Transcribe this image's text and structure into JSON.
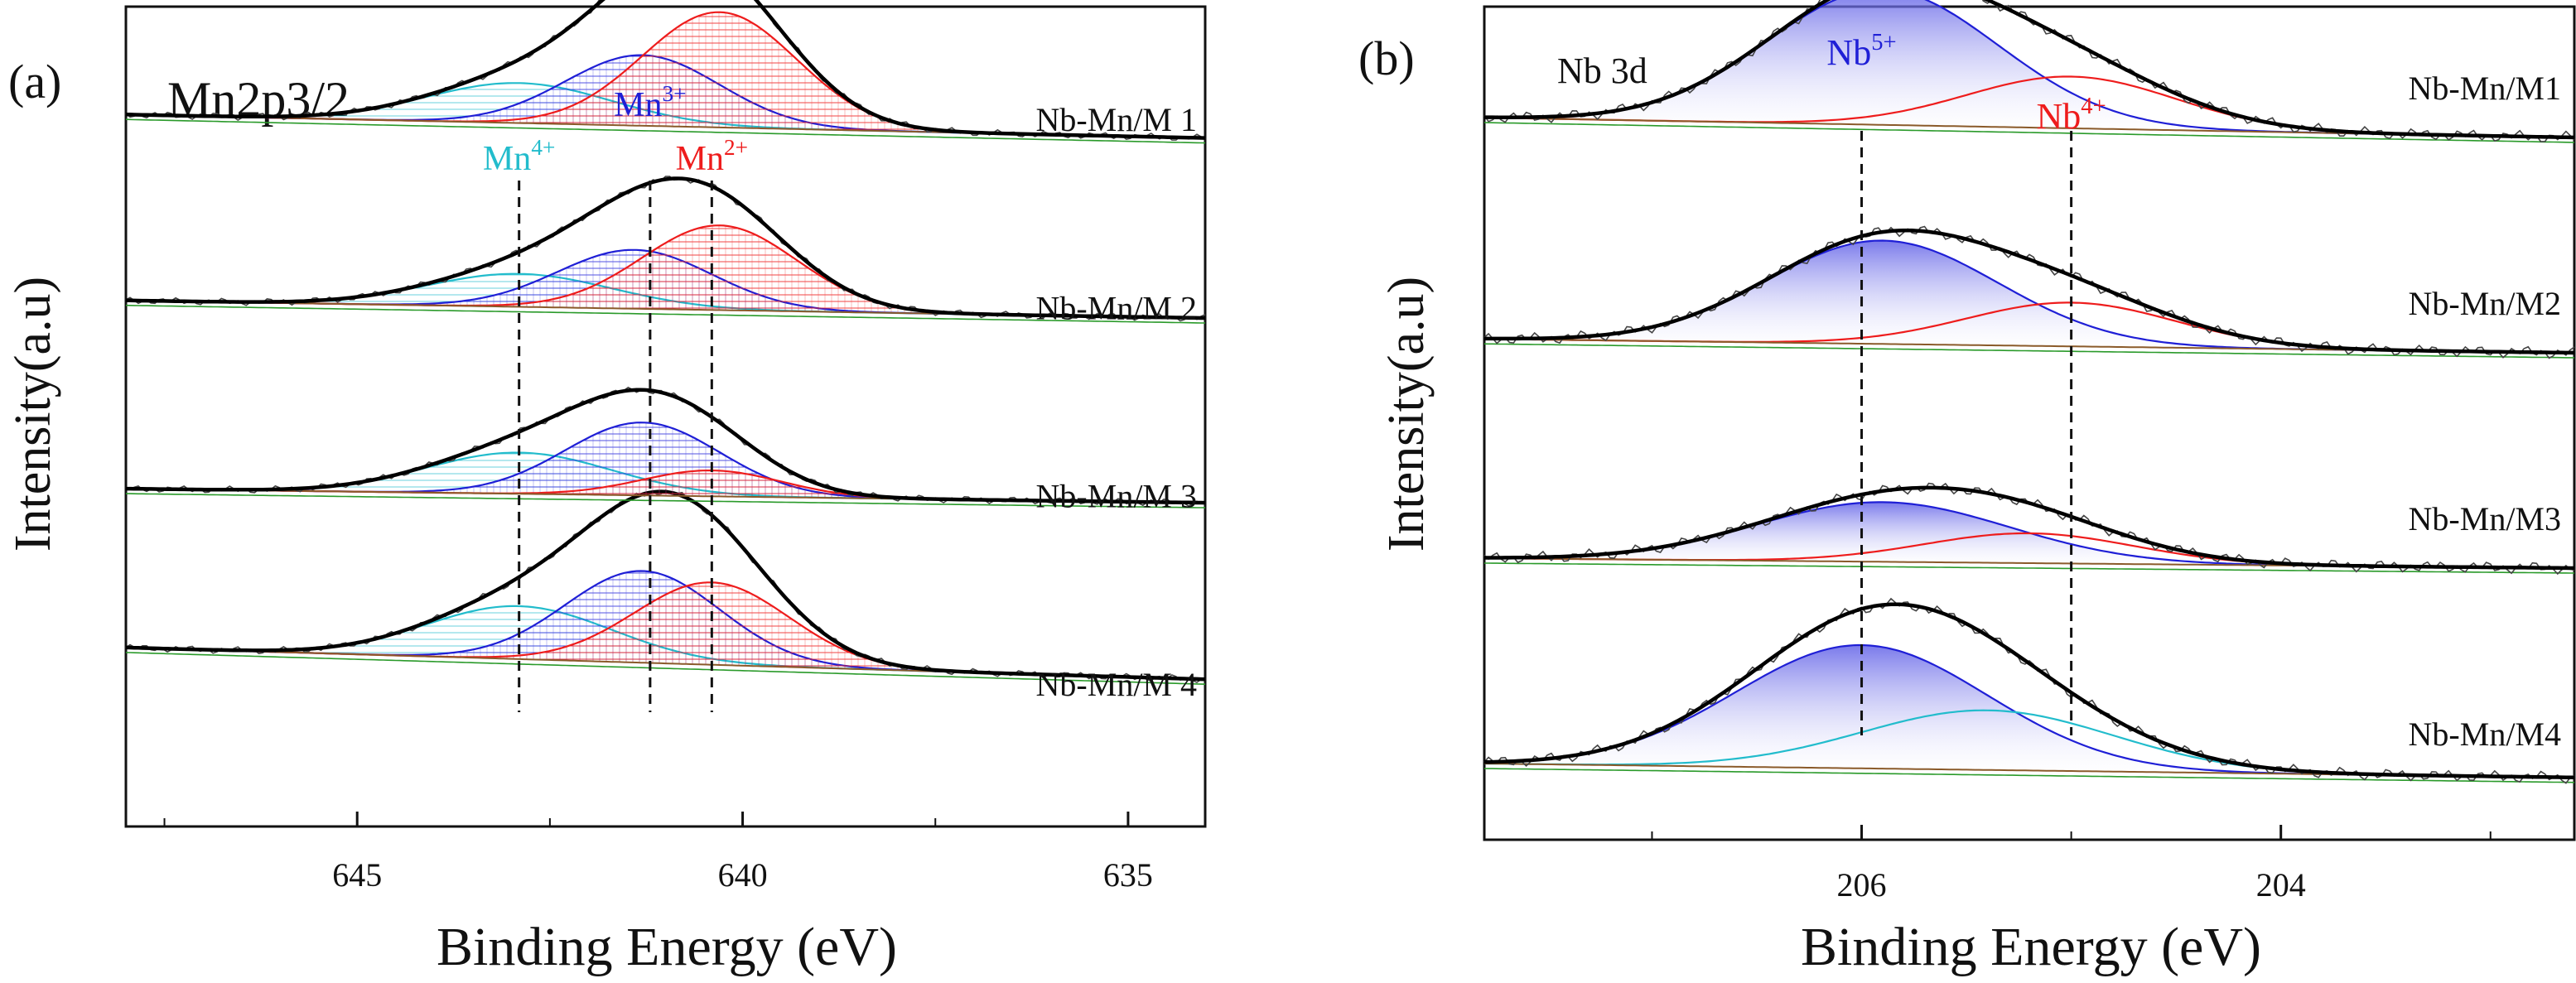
{
  "figure": {
    "description_panels": 2
  },
  "chart_data": [
    {
      "type": "line",
      "panel_label": "(a)",
      "title": "Mn2p3/2",
      "xlabel": "Binding Energy (eV)",
      "ylabel": "Intensity(a.u)",
      "xlim": [
        648,
        634
      ],
      "xticks": [
        645,
        640,
        635
      ],
      "reversed_x": true,
      "grid": false,
      "component_labels": [
        {
          "base": "Mn",
          "sup": "4+",
          "position": 642.9,
          "color": "#22bccc"
        },
        {
          "base": "Mn",
          "sup": "3+",
          "position": 641.2,
          "color": "#1f1fd6"
        },
        {
          "base": "Mn",
          "sup": "2+",
          "position": 640.4,
          "color": "#ee1c1c"
        }
      ],
      "series": [
        {
          "name": "Nb-Mn/M 4",
          "offset": 3.0,
          "baseline_left": 0.55,
          "baseline_right": 0.28,
          "peaks": [
            {
              "label": "Mn4+",
              "center": 642.9,
              "height": 0.45,
              "width": 1.2,
              "color": "#22bccc"
            },
            {
              "label": "Mn3+",
              "center": 641.3,
              "height": 0.78,
              "width": 1.0,
              "color": "#1f1fd6"
            },
            {
              "label": "Mn2+",
              "center": 640.4,
              "height": 0.7,
              "width": 1.0,
              "color": "#ee1c1c"
            }
          ]
        },
        {
          "name": "Nb-Mn/M 3",
          "offset": 2.05,
          "baseline_left": 0.3,
          "baseline_right": 0.18,
          "peaks": [
            {
              "label": "Mn4+",
              "center": 642.9,
              "height": 0.35,
              "width": 1.2,
              "color": "#22bccc"
            },
            {
              "label": "Mn3+",
              "center": 641.3,
              "height": 0.62,
              "width": 1.0,
              "color": "#1f1fd6"
            },
            {
              "label": "Mn2+",
              "center": 640.4,
              "height": 0.22,
              "width": 0.9,
              "color": "#ee1c1c"
            }
          ]
        },
        {
          "name": "Nb-Mn/M 2",
          "offset": 1.05,
          "baseline_left": 0.3,
          "baseline_right": 0.15,
          "peaks": [
            {
              "label": "Mn4+",
              "center": 642.9,
              "height": 0.28,
              "width": 1.2,
              "color": "#22bccc"
            },
            {
              "label": "Mn3+",
              "center": 641.4,
              "height": 0.5,
              "width": 1.0,
              "color": "#1f1fd6"
            },
            {
              "label": "Mn2+",
              "center": 640.3,
              "height": 0.72,
              "width": 1.0,
              "color": "#ee1c1c"
            }
          ]
        },
        {
          "name": "Nb-Mn/M 1",
          "offset": 0.0,
          "baseline_left": 0.28,
          "baseline_right": 0.08,
          "peaks": [
            {
              "label": "Mn4+",
              "center": 642.9,
              "height": 0.34,
              "width": 1.2,
              "color": "#22bccc"
            },
            {
              "label": "Mn3+",
              "center": 641.3,
              "height": 0.6,
              "width": 1.0,
              "color": "#1f1fd6"
            },
            {
              "label": "Mn2+",
              "center": 640.3,
              "height": 0.98,
              "width": 1.0,
              "color": "#ee1c1c"
            }
          ]
        }
      ],
      "dashed_lines": [
        642.9,
        641.2,
        640.4
      ]
    },
    {
      "type": "line",
      "panel_label": "(b)",
      "title": "Nb 3d",
      "xlabel": "Binding Energy (eV)",
      "ylabel": "Intensity(a.u)",
      "xlim": [
        207.8,
        202.6
      ],
      "xticks": [
        206,
        204
      ],
      "reversed_x": true,
      "grid": false,
      "component_labels": [
        {
          "base": "Nb",
          "sup": "5+",
          "position": 206.0,
          "color": "#1f1fd6"
        },
        {
          "base": "Nb",
          "sup": "4+",
          "position": 205.0,
          "color": "#ee1c1c"
        }
      ],
      "series": [
        {
          "name": "Nb-Mn/M4",
          "offset": 3.0,
          "baseline_left": 0.15,
          "baseline_right": 0.08,
          "peaks": [
            {
              "label": "Nb5+",
              "center": 206.0,
              "height": 0.62,
              "width": 0.6,
              "color": "#1f1fd6"
            },
            {
              "label": "Nb4+",
              "center": 205.4,
              "height": 0.3,
              "width": 0.6,
              "color": "#22bccc"
            }
          ]
        },
        {
          "name": "Nb-Mn/M3",
          "offset": 2.1,
          "baseline_left": 0.1,
          "baseline_right": 0.05,
          "peaks": [
            {
              "label": "Nb5+",
              "center": 205.9,
              "height": 0.3,
              "width": 0.6,
              "color": "#1f1fd6"
            },
            {
              "label": "Nb4+",
              "center": 205.2,
              "height": 0.15,
              "width": 0.5,
              "color": "#ee1c1c"
            }
          ]
        },
        {
          "name": "Nb-Mn/M2",
          "offset": 1.05,
          "baseline_left": 0.12,
          "baseline_right": 0.05,
          "peaks": [
            {
              "label": "Nb5+",
              "center": 205.9,
              "height": 0.52,
              "width": 0.55,
              "color": "#1f1fd6"
            },
            {
              "label": "Nb4+",
              "center": 205.0,
              "height": 0.22,
              "width": 0.5,
              "color": "#ee1c1c"
            }
          ]
        },
        {
          "name": "Nb-Mn/M1",
          "offset": 0.0,
          "baseline_left": 0.15,
          "baseline_right": 0.05,
          "peaks": [
            {
              "label": "Nb5+",
              "center": 205.9,
              "height": 0.68,
              "width": 0.55,
              "color": "#1f1fd6"
            },
            {
              "label": "Nb4+",
              "center": 205.0,
              "height": 0.26,
              "width": 0.5,
              "color": "#ee1c1c"
            }
          ]
        }
      ],
      "dashed_lines": [
        206.0,
        205.0
      ]
    }
  ]
}
